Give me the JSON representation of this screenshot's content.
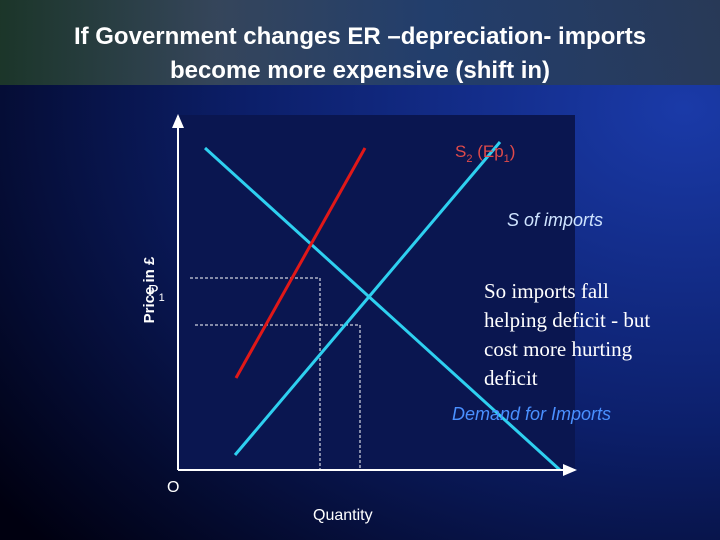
{
  "title": {
    "line1": "If Government changes ER –depreciation- imports",
    "line2": "become more expensive (shift in)"
  },
  "diagram": {
    "supply_new_label": {
      "letter": "S",
      "letter_sub": "2",
      "paren": " (Ep",
      "paren_sub": "1",
      "close": ")"
    },
    "supply_label": "S of imports",
    "demand_label": "Demand for Imports",
    "y_axis_label": "Price in £",
    "price_label": {
      "letter": "P",
      "sub": "1"
    },
    "origin_label": "O",
    "x_axis_label": "Quantity",
    "note": [
      "So imports fall",
      "helping deficit - but",
      "cost more hurting",
      "deficit"
    ]
  }
}
